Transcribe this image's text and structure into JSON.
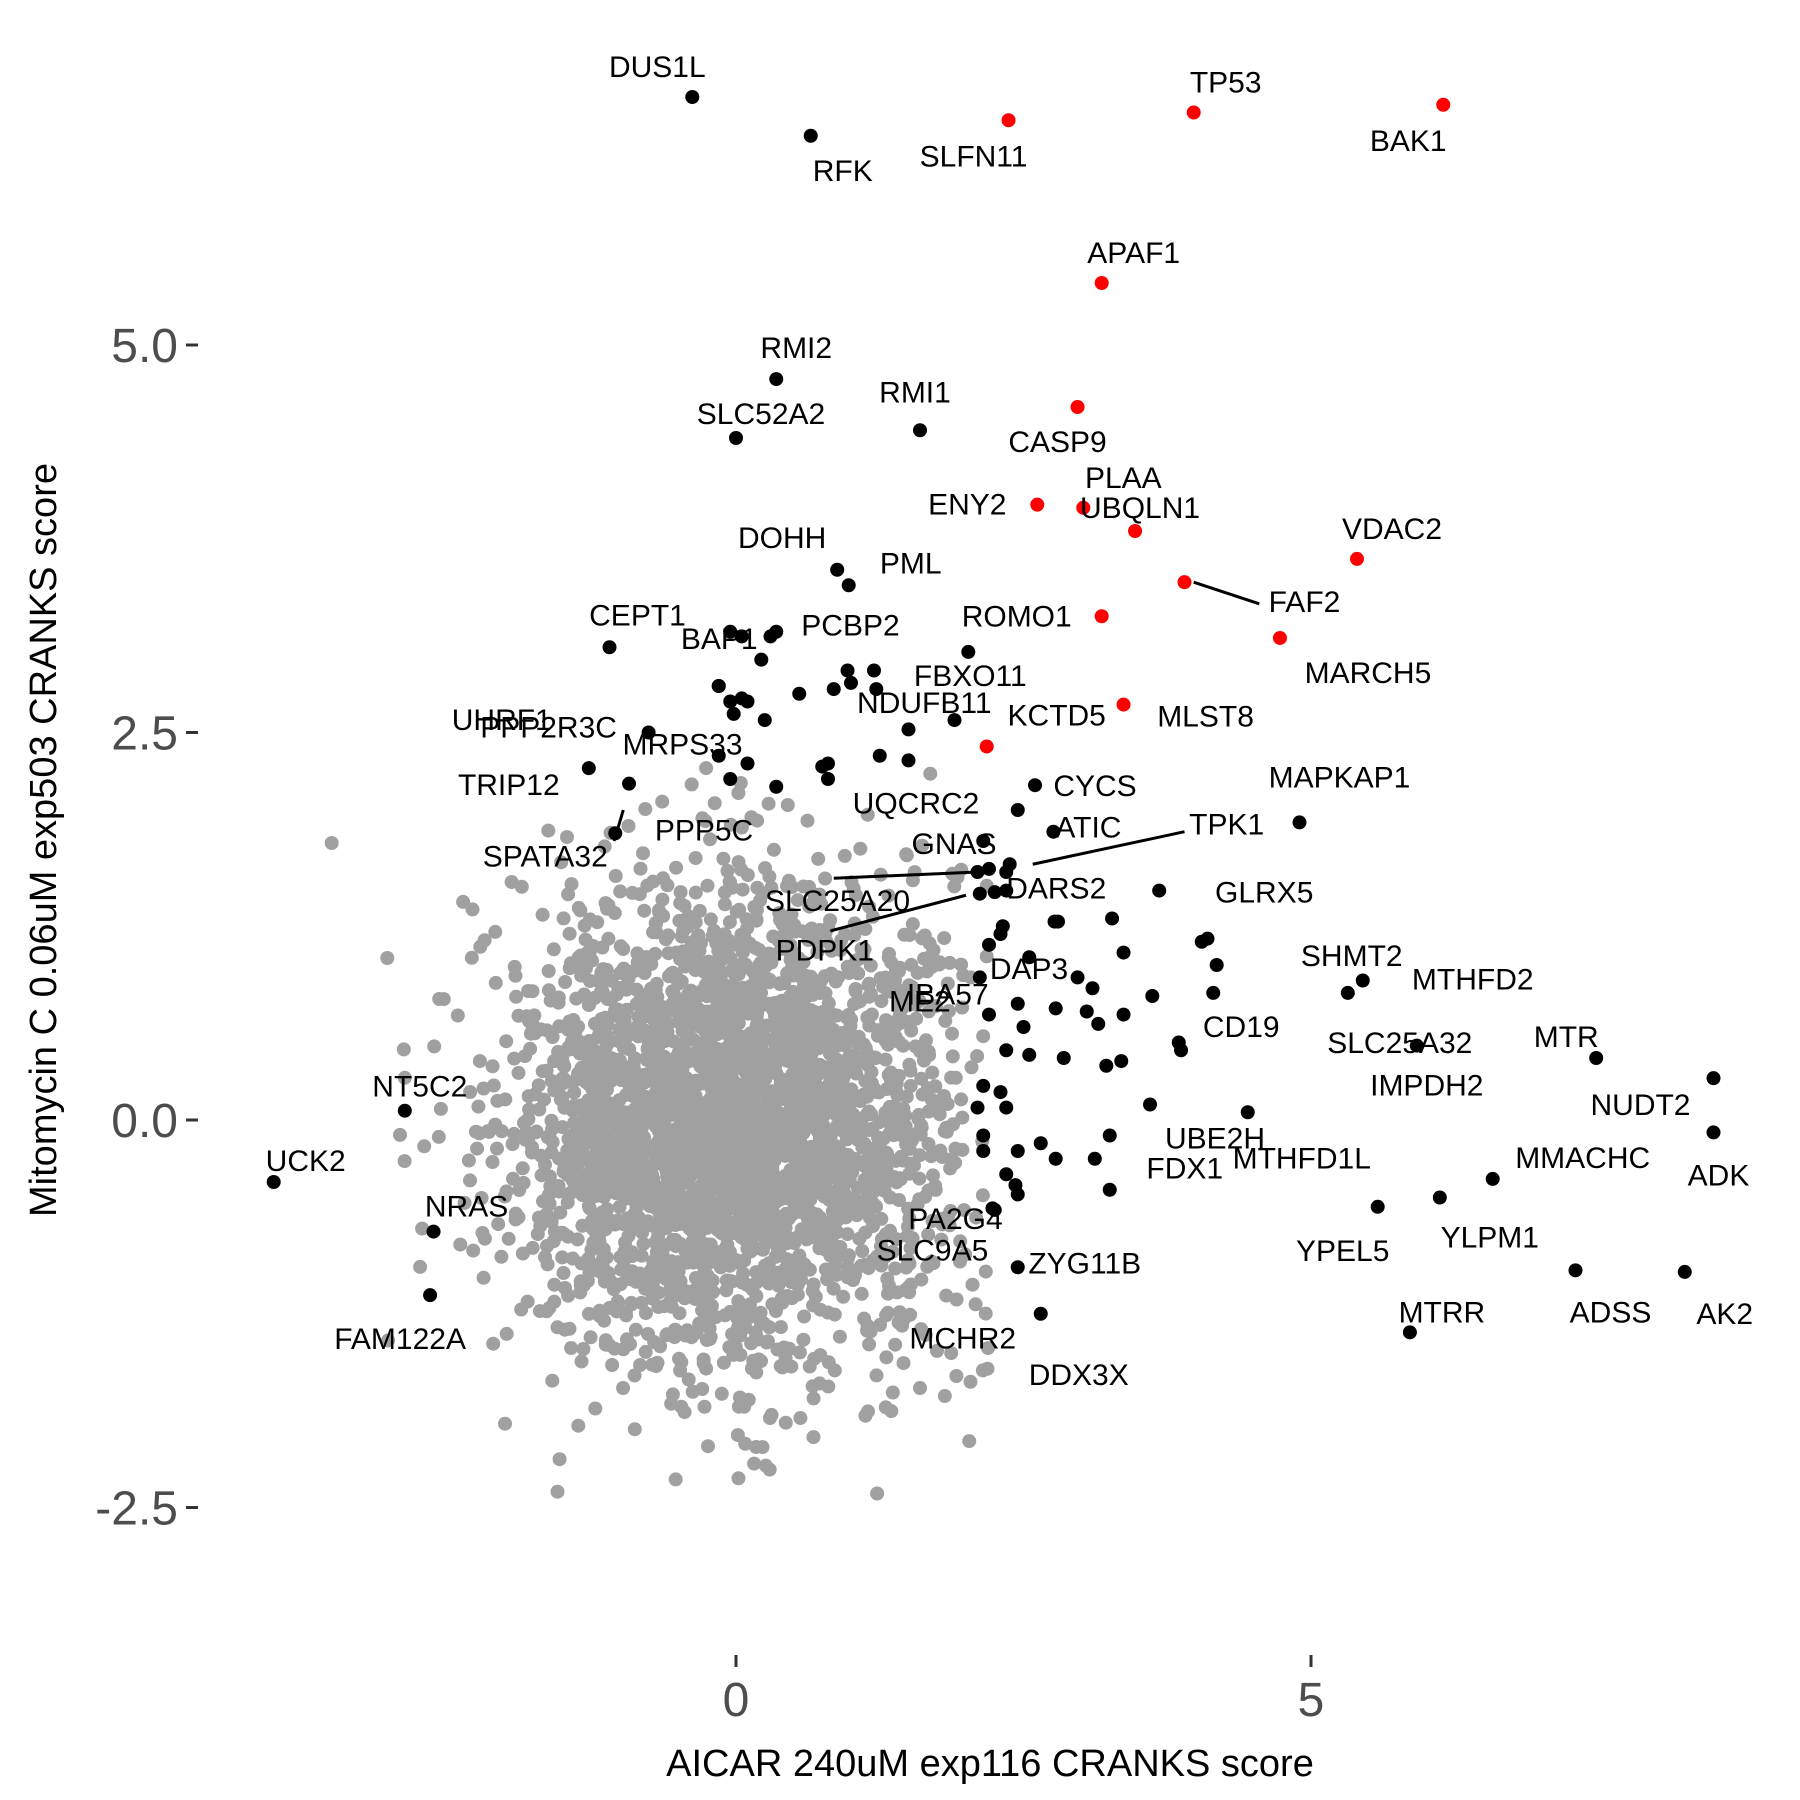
{
  "chart_data": {
    "type": "scatter",
    "title": "",
    "xlabel": "AICAR 240uM exp116 CRANKS score",
    "ylabel": "Mitomycin C 0.06uM exp503 CRANKS score",
    "xlim": [
      -4.7,
      8.7
    ],
    "ylim": [
      -3.3,
      7.1
    ],
    "x_ticks": [
      0,
      5
    ],
    "x_tick_labels": [
      "0",
      "5"
    ],
    "y_ticks": [
      -2.5,
      0,
      2.5,
      5
    ],
    "y_tick_labels": [
      "-2.5",
      "0.0",
      "2.5",
      "5.0"
    ],
    "grid": false,
    "legend": "none",
    "colors": {
      "background_genes": "#a0a0a0",
      "highlight": "#000000",
      "apoptosis": "#ff0000"
    },
    "background_cloud": {
      "description_free": true,
      "center": [
        0.0,
        0.0
      ],
      "spread": [
        0.95,
        0.75
      ],
      "count": 3200
    },
    "red_points": [
      {
        "label": "TP53",
        "x": 3.98,
        "y": 6.5
      },
      {
        "label": "BAK1",
        "x": 6.15,
        "y": 6.55
      },
      {
        "label": "SLFN11",
        "x": 2.37,
        "y": 6.45
      },
      {
        "label": "APAF1",
        "x": 3.18,
        "y": 5.4
      },
      {
        "label": "CASP9",
        "x": 2.97,
        "y": 4.6
      },
      {
        "label": "ENY2",
        "x": 2.62,
        "y": 3.97
      },
      {
        "label": "PLAA",
        "x": 3.02,
        "y": 3.95
      },
      {
        "label": "UBQLN1",
        "x": 3.47,
        "y": 3.8
      },
      {
        "label": "VDAC2",
        "x": 5.4,
        "y": 3.62
      },
      {
        "label": "FAF2",
        "x": 3.9,
        "y": 3.47
      },
      {
        "label": "ROMO1",
        "x": 3.18,
        "y": 3.25
      },
      {
        "label": "MARCH5",
        "x": 4.73,
        "y": 3.11
      },
      {
        "label": "MLST8",
        "x": 3.37,
        "y": 2.68
      },
      {
        "label": "KCTD5",
        "x": 2.18,
        "y": 2.41
      }
    ],
    "labeled_black_points": [
      {
        "label": "DUS1L",
        "x": -0.38,
        "y": 6.6
      },
      {
        "label": "RFK",
        "x": 0.65,
        "y": 6.35
      },
      {
        "label": "RMI2",
        "x": 0.35,
        "y": 4.78
      },
      {
        "label": "SLC52A2",
        "x": 0.0,
        "y": 4.4
      },
      {
        "label": "RMI1",
        "x": 1.6,
        "y": 4.45
      },
      {
        "label": "DOHH",
        "x": 0.88,
        "y": 3.55
      },
      {
        "label": "PML",
        "x": 0.98,
        "y": 3.45
      },
      {
        "label": "BAP1",
        "x": 0.35,
        "y": 3.15
      },
      {
        "label": "CEPT1",
        "x": -1.1,
        "y": 3.05
      },
      {
        "label": "PCBP2",
        "x": 0.3,
        "y": 3.12
      },
      {
        "label": "UHRF1",
        "x": -0.15,
        "y": 2.8
      },
      {
        "label": "MRPS33",
        "x": 0.1,
        "y": 2.7
      },
      {
        "label": "NDUFB11",
        "x": 1.22,
        "y": 2.78
      },
      {
        "label": "FBXO11",
        "x": 2.02,
        "y": 3.02
      },
      {
        "label": "PPP2R3C",
        "x": -0.76,
        "y": 2.5
      },
      {
        "label": "TRIP12",
        "x": -1.28,
        "y": 2.27
      },
      {
        "label": "PPP5C",
        "x": -0.93,
        "y": 2.17
      },
      {
        "label": "UQCRC2",
        "x": 0.8,
        "y": 2.3
      },
      {
        "label": "CYCS",
        "x": 2.6,
        "y": 2.16
      },
      {
        "label": "MAPKAP1",
        "x": 4.9,
        "y": 1.92
      },
      {
        "label": "ATIC",
        "x": 2.76,
        "y": 1.86
      },
      {
        "label": "TPK1",
        "x": 2.38,
        "y": 1.65
      },
      {
        "label": "GNAS",
        "x": 2.2,
        "y": 1.62
      },
      {
        "label": "SLC25A20",
        "x": 2.1,
        "y": 1.6
      },
      {
        "label": "DARS2",
        "x": 2.35,
        "y": 1.48
      },
      {
        "label": "GLRX5",
        "x": 3.68,
        "y": 1.48
      },
      {
        "label": "PDPK1",
        "x": 2.12,
        "y": 1.46
      },
      {
        "label": "IBA57",
        "x": 2.32,
        "y": 1.25
      },
      {
        "label": "SHMT2",
        "x": 4.05,
        "y": 1.15
      },
      {
        "label": "DAP3",
        "x": 2.2,
        "y": 1.13
      },
      {
        "label": "MTHFD2",
        "x": 5.45,
        "y": 0.9
      },
      {
        "label": "ME2",
        "x": 2.12,
        "y": 0.92
      },
      {
        "label": "CD19",
        "x": 4.15,
        "y": 0.82
      },
      {
        "label": "SLC25A32",
        "x": 5.32,
        "y": 0.82
      },
      {
        "label": "IMPDH2",
        "x": 5.92,
        "y": 0.48
      },
      {
        "label": "MTR",
        "x": 7.48,
        "y": 0.4
      },
      {
        "label": "NUDT2",
        "x": 8.5,
        "y": 0.27
      },
      {
        "label": "UBE2H",
        "x": 3.6,
        "y": 0.1
      },
      {
        "label": "MTHFD1L",
        "x": 4.45,
        "y": 0.05
      },
      {
        "label": "ADK",
        "x": 8.5,
        "y": -0.08
      },
      {
        "label": "FDX1",
        "x": 3.25,
        "y": -0.1
      },
      {
        "label": "PA2G4",
        "x": 2.43,
        "y": -0.42
      },
      {
        "label": "MMACHC",
        "x": 6.58,
        "y": -0.38
      },
      {
        "label": "YPEL5",
        "x": 5.58,
        "y": -0.56
      },
      {
        "label": "YLPM1",
        "x": 6.12,
        "y": -0.5
      },
      {
        "label": "ZYG11B",
        "x": 2.45,
        "y": -0.48
      },
      {
        "label": "SLC9A5",
        "x": 2.23,
        "y": -0.57
      },
      {
        "label": "MCHR2",
        "x": 2.45,
        "y": -0.95
      },
      {
        "label": "DDX3X",
        "x": 2.65,
        "y": -1.25
      },
      {
        "label": "ADSS",
        "x": 7.3,
        "y": -0.97
      },
      {
        "label": "AK2",
        "x": 8.25,
        "y": -0.98
      },
      {
        "label": "MTRR",
        "x": 5.86,
        "y": -1.37
      },
      {
        "label": "NT5C2",
        "x": -2.88,
        "y": 0.06
      },
      {
        "label": "UCK2",
        "x": -4.02,
        "y": -0.4
      },
      {
        "label": "NRAS",
        "x": -2.63,
        "y": -0.72
      },
      {
        "label": "FAM122A",
        "x": -2.66,
        "y": -1.13
      },
      {
        "label": "SPATA32",
        "x": -1.05,
        "y": 1.85
      }
    ],
    "unlabeled_black_points": [
      [
        -0.05,
        3.15
      ],
      [
        0.05,
        3.12
      ],
      [
        0.22,
        2.97
      ],
      [
        -0.15,
        2.8
      ],
      [
        -0.05,
        2.7
      ],
      [
        0.05,
        2.72
      ],
      [
        -0.02,
        2.62
      ],
      [
        0.25,
        2.58
      ],
      [
        0.55,
        2.75
      ],
      [
        0.85,
        2.78
      ],
      [
        0.97,
        2.9
      ],
      [
        1.2,
        2.9
      ],
      [
        1.0,
        2.82
      ],
      [
        1.5,
        2.52
      ],
      [
        1.9,
        2.58
      ],
      [
        -0.15,
        2.35
      ],
      [
        0.1,
        2.3
      ],
      [
        0.75,
        2.28
      ],
      [
        1.25,
        2.35
      ],
      [
        1.5,
        2.32
      ],
      [
        0.8,
        2.2
      ],
      [
        0.35,
        2.15
      ],
      [
        -0.05,
        2.2
      ],
      [
        2.45,
        2.0
      ],
      [
        2.15,
        1.8
      ],
      [
        2.35,
        1.6
      ],
      [
        2.25,
        1.47
      ],
      [
        2.3,
        1.2
      ],
      [
        2.8,
        1.28
      ],
      [
        2.77,
        1.28
      ],
      [
        3.27,
        1.3
      ],
      [
        3.37,
        1.08
      ],
      [
        4.1,
        1.17
      ],
      [
        4.18,
        1.0
      ],
      [
        2.55,
        1.05
      ],
      [
        2.97,
        0.92
      ],
      [
        3.1,
        0.85
      ],
      [
        3.62,
        0.8
      ],
      [
        2.45,
        0.75
      ],
      [
        2.78,
        0.72
      ],
      [
        3.05,
        0.7
      ],
      [
        3.37,
        0.68
      ],
      [
        2.2,
        0.68
      ],
      [
        2.5,
        0.6
      ],
      [
        3.15,
        0.62
      ],
      [
        3.85,
        0.5
      ],
      [
        3.87,
        0.45
      ],
      [
        2.35,
        0.45
      ],
      [
        2.55,
        0.42
      ],
      [
        2.85,
        0.4
      ],
      [
        3.35,
        0.38
      ],
      [
        3.22,
        0.35
      ],
      [
        2.15,
        0.22
      ],
      [
        2.3,
        0.18
      ],
      [
        2.35,
        0.08
      ],
      [
        2.1,
        0.08
      ],
      [
        2.15,
        -0.1
      ],
      [
        2.45,
        -0.2
      ],
      [
        2.78,
        -0.25
      ],
      [
        2.65,
        -0.15
      ],
      [
        3.12,
        -0.25
      ],
      [
        3.25,
        -0.45
      ],
      [
        2.35,
        -0.35
      ],
      [
        2.15,
        -0.2
      ],
      [
        2.25,
        -0.58
      ]
    ]
  }
}
